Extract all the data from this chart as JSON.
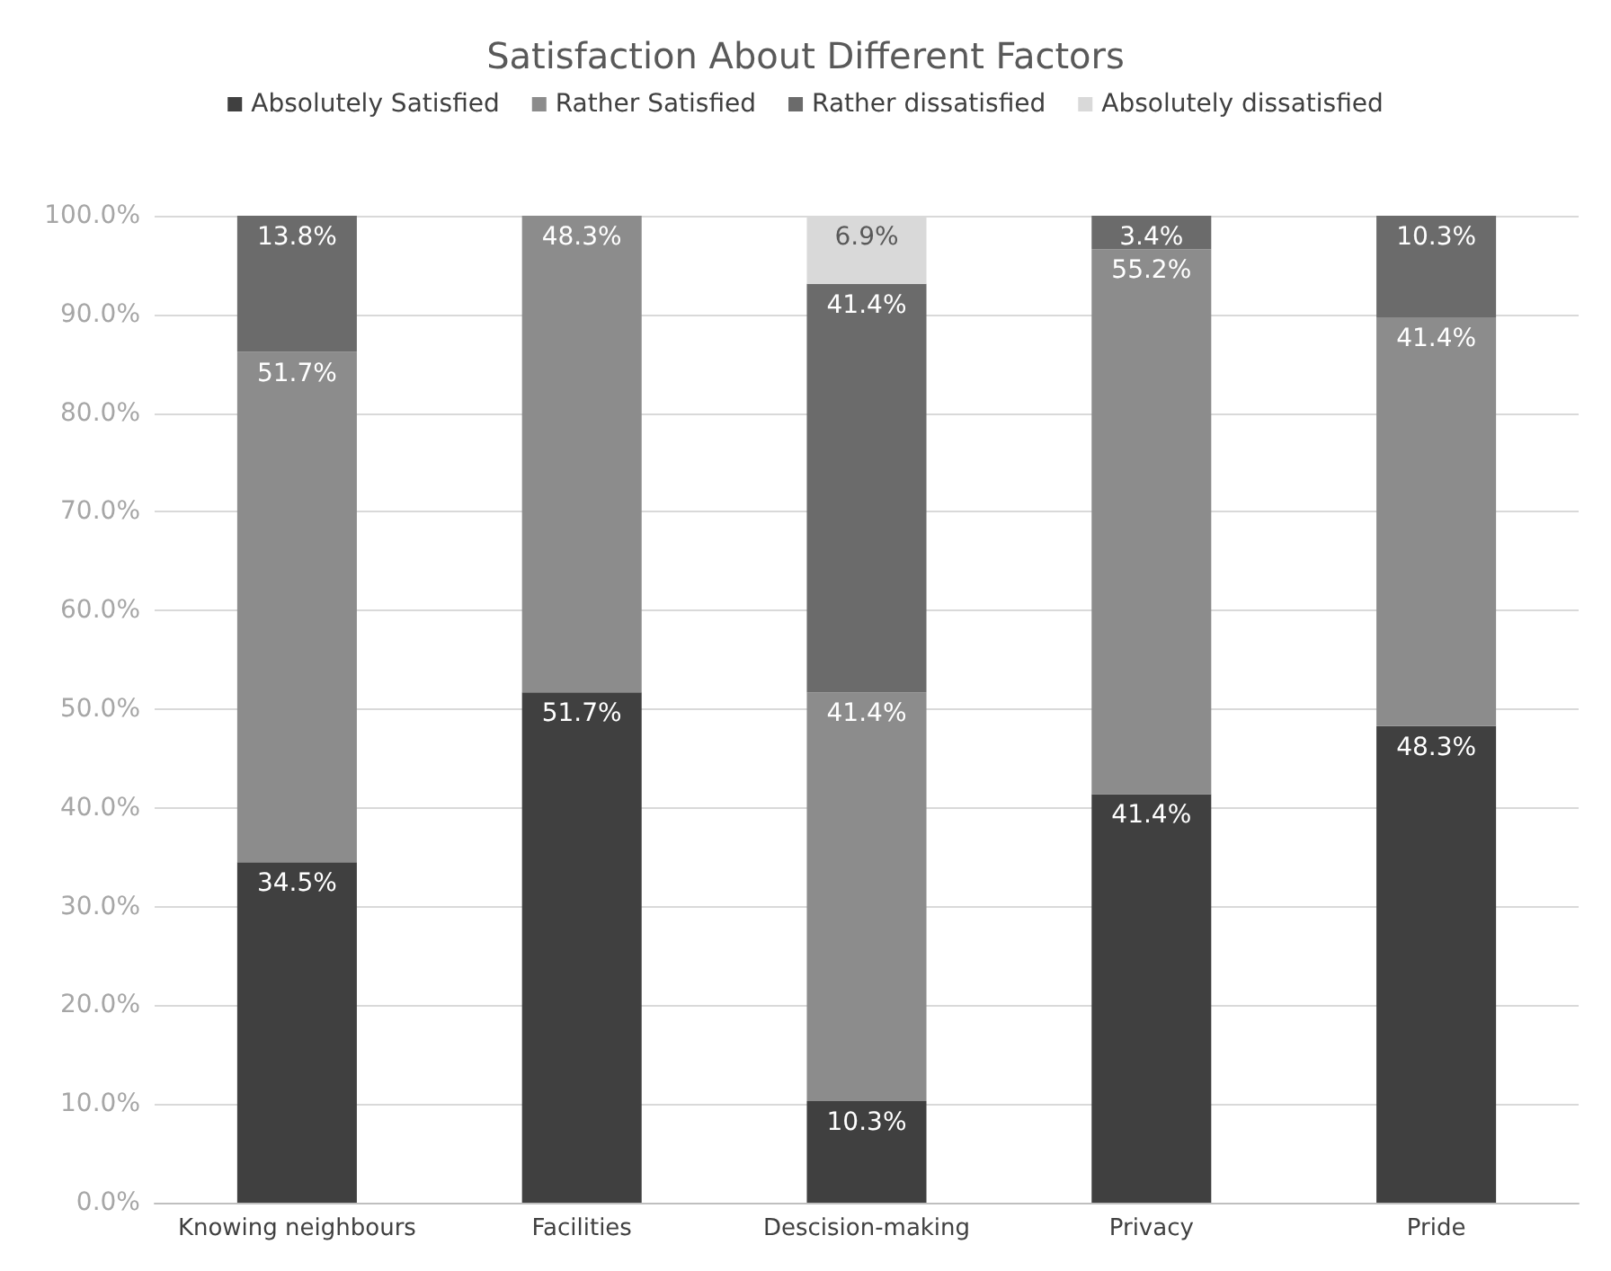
{
  "chart_data": {
    "type": "bar",
    "title": "Satisfaction About Different Factors",
    "stacked": true,
    "categories": [
      "Knowing neighbours",
      "Facilities",
      "Descision-making",
      "Privacy",
      "Pride"
    ],
    "series": [
      {
        "name": "Absolutely Satisfied",
        "color": "#404040",
        "values": [
          34.5,
          51.7,
          10.3,
          41.4,
          48.3
        ],
        "value_labels": [
          "34.5%",
          "51.7%",
          "10.3%",
          "41.4%",
          "48.3%"
        ]
      },
      {
        "name": "Rather Satisfied",
        "color": "#8c8c8c",
        "values": [
          51.7,
          48.3,
          41.4,
          55.2,
          41.4
        ],
        "value_labels": [
          "51.7%",
          "48.3%",
          "41.4%",
          "55.2%",
          "41.4%"
        ]
      },
      {
        "name": "Rather dissatisfied",
        "color": "#6b6b6b",
        "values": [
          13.8,
          null,
          41.4,
          3.4,
          10.3
        ],
        "value_labels": [
          "13.8%",
          null,
          "41.4%",
          "3.4%",
          "10.3%"
        ]
      },
      {
        "name": "Absolutely dissatisfied",
        "color": "#d9d9d9",
        "values": [
          null,
          null,
          6.9,
          null,
          null
        ],
        "value_labels": [
          null,
          null,
          "6.9%",
          null,
          null
        ]
      }
    ],
    "ylim": [
      0,
      100
    ],
    "yticks": [
      {
        "value": 0,
        "label": "0.0%"
      },
      {
        "value": 10,
        "label": "10.0%"
      },
      {
        "value": 20,
        "label": "20.0%"
      },
      {
        "value": 30,
        "label": "30.0%"
      },
      {
        "value": 40,
        "label": "40.0%"
      },
      {
        "value": 50,
        "label": "50.0%"
      },
      {
        "value": 60,
        "label": "60.0%"
      },
      {
        "value": 70,
        "label": "70.0%"
      },
      {
        "value": 80,
        "label": "80.0%"
      },
      {
        "value": 90,
        "label": "90.0%"
      },
      {
        "value": 100,
        "label": "100.0%"
      }
    ],
    "grid": "y",
    "legend": "top"
  }
}
